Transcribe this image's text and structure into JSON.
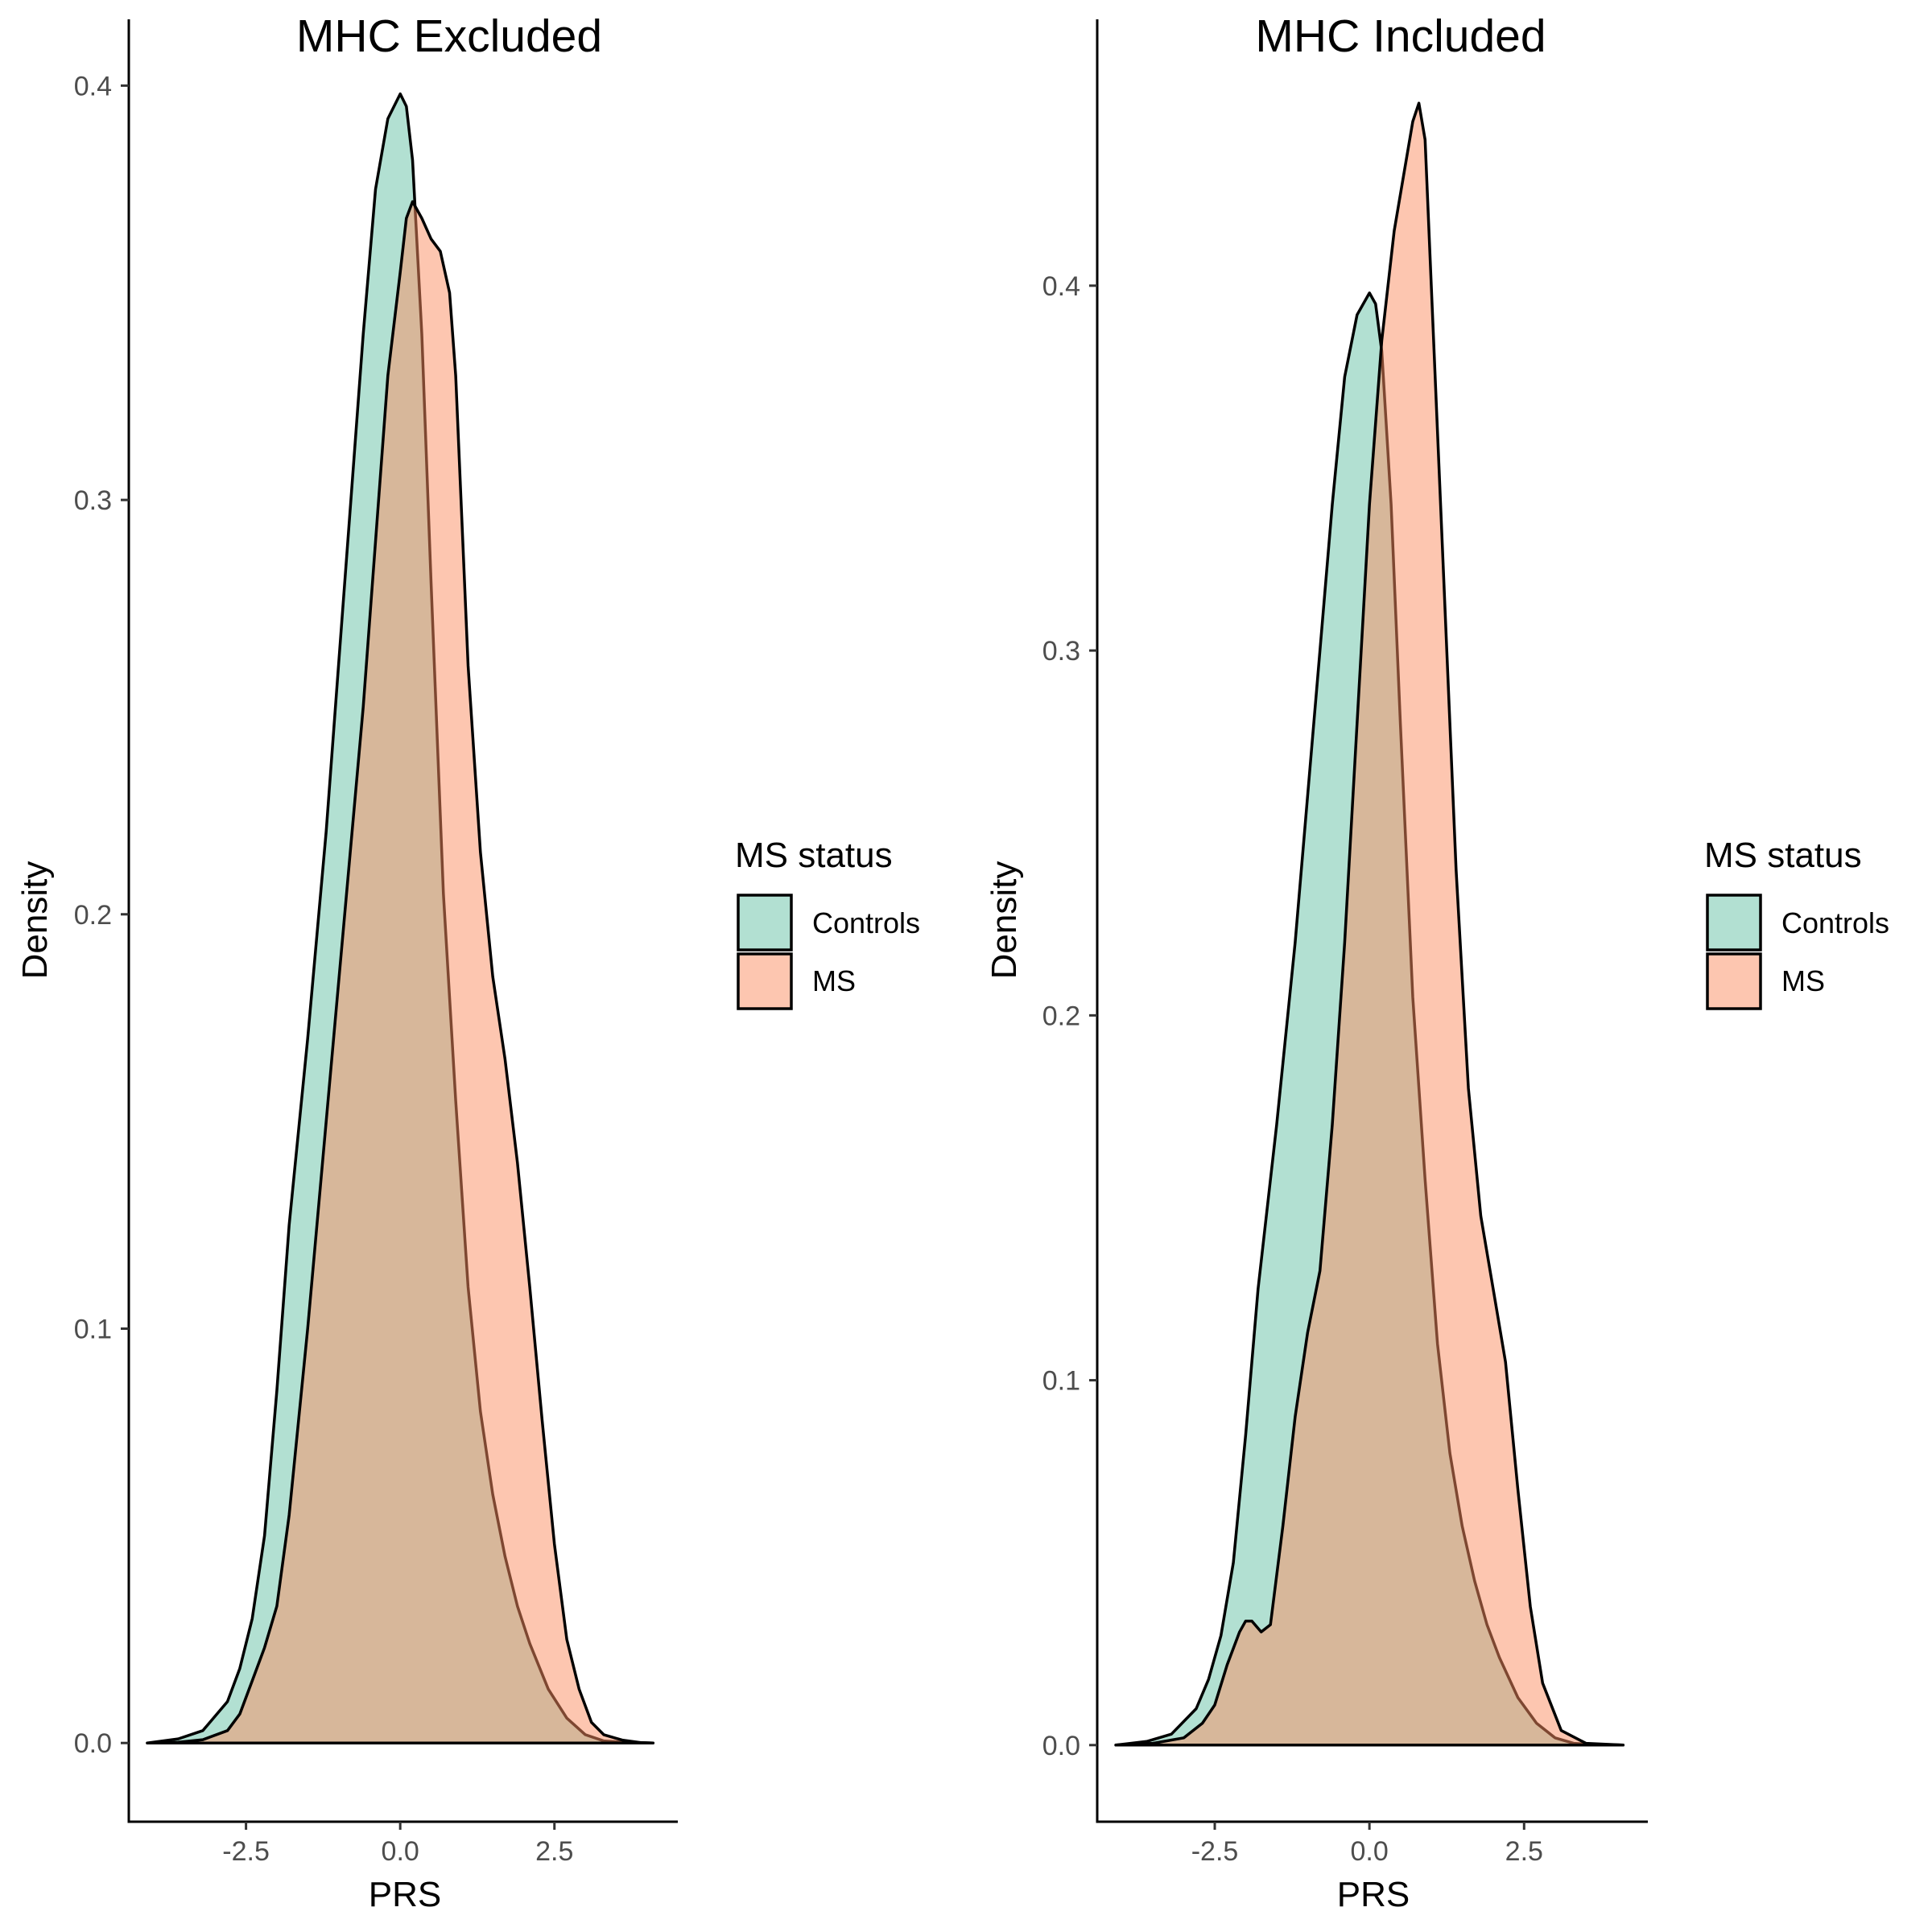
{
  "chart_data": [
    {
      "type": "area",
      "title": "MHC Excluded",
      "xlabel": "PRS",
      "ylabel": "Density",
      "xlim": [
        -4.4,
        4.5
      ],
      "ylim": [
        -0.019,
        0.416
      ],
      "xticks": [
        -2.5,
        0.0,
        2.5
      ],
      "xtick_labels": [
        "-2.5",
        "0.0",
        "2.5"
      ],
      "yticks": [
        0.0,
        0.1,
        0.2,
        0.3,
        0.4
      ],
      "ytick_labels": [
        "0.0",
        "0.1",
        "0.2",
        "0.3",
        "0.4"
      ],
      "grid": false,
      "legend": {
        "title": "MS status",
        "position": "right"
      },
      "series": [
        {
          "name": "Controls",
          "color": "#66c2a5",
          "x": [
            -4.1,
            -3.6,
            -3.2,
            -2.8,
            -2.6,
            -2.4,
            -2.2,
            -2.0,
            -1.8,
            -1.5,
            -1.2,
            -1.0,
            -0.8,
            -0.6,
            -0.4,
            -0.2,
            0.0,
            0.1,
            0.2,
            0.35,
            0.5,
            0.7,
            0.9,
            1.1,
            1.3,
            1.5,
            1.7,
            1.9,
            2.1,
            2.4,
            2.7,
            3.0,
            3.3,
            3.6,
            3.9,
            4.1
          ],
          "y": [
            0.0,
            0.001,
            0.003,
            0.01,
            0.018,
            0.03,
            0.05,
            0.085,
            0.125,
            0.17,
            0.22,
            0.26,
            0.3,
            0.34,
            0.375,
            0.392,
            0.398,
            0.395,
            0.382,
            0.34,
            0.28,
            0.205,
            0.155,
            0.11,
            0.08,
            0.06,
            0.045,
            0.033,
            0.024,
            0.013,
            0.006,
            0.002,
            0.0005,
            0.0002,
            0.0001,
            0.0
          ]
        },
        {
          "name": "MS",
          "color": "#fc8d62",
          "x": [
            -4.1,
            -3.6,
            -3.2,
            -2.8,
            -2.6,
            -2.4,
            -2.2,
            -2.0,
            -1.8,
            -1.5,
            -1.2,
            -0.9,
            -0.6,
            -0.4,
            -0.2,
            0.0,
            0.1,
            0.2,
            0.35,
            0.5,
            0.65,
            0.8,
            0.9,
            1.1,
            1.3,
            1.5,
            1.7,
            1.9,
            2.1,
            2.3,
            2.5,
            2.7,
            2.9,
            3.1,
            3.3,
            3.6,
            3.9,
            4.1
          ],
          "y": [
            0.0,
            0.0002,
            0.0008,
            0.003,
            0.007,
            0.015,
            0.023,
            0.033,
            0.055,
            0.1,
            0.15,
            0.2,
            0.25,
            0.29,
            0.33,
            0.355,
            0.368,
            0.372,
            0.368,
            0.363,
            0.36,
            0.35,
            0.33,
            0.26,
            0.215,
            0.185,
            0.165,
            0.14,
            0.11,
            0.078,
            0.048,
            0.025,
            0.013,
            0.005,
            0.002,
            0.0007,
            0.0001,
            0.0
          ]
        }
      ]
    },
    {
      "type": "area",
      "title": "MHC Included",
      "xlabel": "PRS",
      "ylabel": "Density",
      "xlim": [
        -4.4,
        4.5
      ],
      "ylim": [
        -0.021,
        0.473
      ],
      "xticks": [
        -2.5,
        0.0,
        2.5
      ],
      "xtick_labels": [
        "-2.5",
        "0.0",
        "2.5"
      ],
      "yticks": [
        0.0,
        0.1,
        0.2,
        0.3,
        0.4
      ],
      "ytick_labels": [
        "0.0",
        "0.1",
        "0.2",
        "0.3",
        "0.4"
      ],
      "grid": false,
      "legend": {
        "title": "MS status",
        "position": "right"
      },
      "series": [
        {
          "name": "Controls",
          "color": "#66c2a5",
          "x": [
            -4.1,
            -3.6,
            -3.2,
            -2.8,
            -2.6,
            -2.4,
            -2.2,
            -2.0,
            -1.8,
            -1.5,
            -1.2,
            -1.0,
            -0.8,
            -0.6,
            -0.4,
            -0.2,
            0.0,
            0.1,
            0.2,
            0.35,
            0.5,
            0.7,
            0.9,
            1.1,
            1.3,
            1.5,
            1.7,
            1.9,
            2.1,
            2.4,
            2.7,
            3.0,
            3.3,
            3.6,
            3.9,
            4.1
          ],
          "y": [
            0.0,
            0.001,
            0.003,
            0.01,
            0.018,
            0.03,
            0.05,
            0.085,
            0.125,
            0.17,
            0.22,
            0.26,
            0.3,
            0.34,
            0.375,
            0.392,
            0.398,
            0.395,
            0.382,
            0.34,
            0.28,
            0.205,
            0.155,
            0.11,
            0.08,
            0.06,
            0.045,
            0.033,
            0.024,
            0.013,
            0.006,
            0.002,
            0.0005,
            0.0002,
            0.0001,
            0.0
          ]
        },
        {
          "name": "MS",
          "color": "#fc8d62",
          "x": [
            -4.1,
            -3.5,
            -3.0,
            -2.7,
            -2.5,
            -2.3,
            -2.1,
            -2.0,
            -1.9,
            -1.75,
            -1.6,
            -1.4,
            -1.2,
            -1.0,
            -0.8,
            -0.6,
            -0.4,
            -0.2,
            0.0,
            0.2,
            0.4,
            0.6,
            0.7,
            0.8,
            0.9,
            1.0,
            1.2,
            1.4,
            1.6,
            1.8,
            2.0,
            2.2,
            2.4,
            2.6,
            2.8,
            3.1,
            3.5,
            4.1
          ],
          "y": [
            0.0,
            0.0005,
            0.002,
            0.006,
            0.011,
            0.022,
            0.031,
            0.034,
            0.034,
            0.031,
            0.033,
            0.06,
            0.09,
            0.113,
            0.13,
            0.17,
            0.22,
            0.28,
            0.34,
            0.385,
            0.415,
            0.435,
            0.445,
            0.45,
            0.44,
            0.4,
            0.32,
            0.24,
            0.18,
            0.145,
            0.125,
            0.105,
            0.07,
            0.038,
            0.017,
            0.004,
            0.0005,
            0.0
          ]
        }
      ]
    }
  ]
}
